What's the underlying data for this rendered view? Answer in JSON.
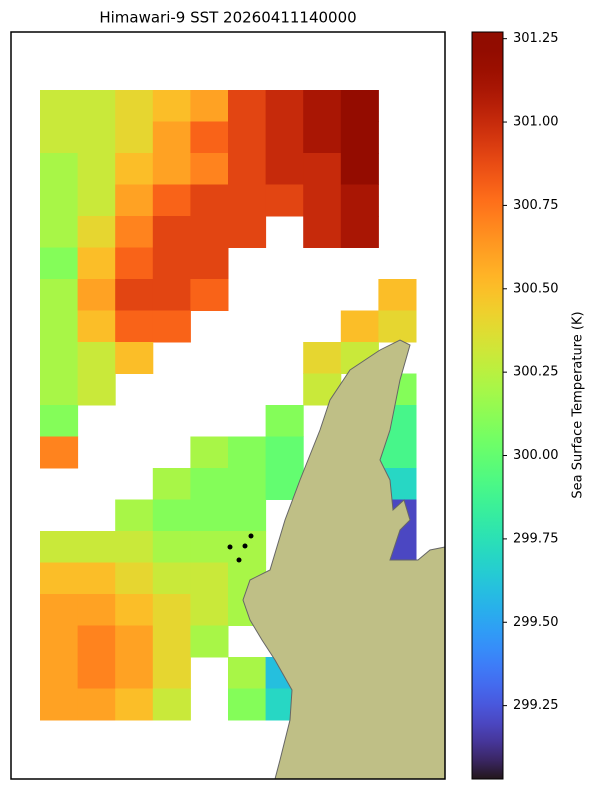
{
  "chart_data": {
    "type": "heatmap",
    "title": "Himawari-9 SST 20260411140000",
    "colorbar_label": "Sea Surface Temperature (K)",
    "colormap": "turbo",
    "vlim": [
      299.03,
      301.27
    ],
    "cticks": [
      299.25,
      {
        "value": 299.5,
        "label": "299.50"
      },
      299.75,
      {
        "value": 300,
        "label": "300.00"
      },
      300.25,
      {
        "value": 300.5,
        "label": "300.50"
      },
      300.75,
      {
        "value": 301,
        "label": "301.00"
      },
      301.25
    ],
    "values": [
      [
        300.3,
        300.3,
        300.4,
        300.5,
        300.6,
        300.9,
        301.0,
        301.1,
        301.2,
        null
      ],
      [
        300.3,
        300.3,
        300.4,
        300.6,
        300.8,
        300.9,
        301.0,
        301.1,
        301.2,
        null
      ],
      [
        300.2,
        300.3,
        300.5,
        300.6,
        300.7,
        300.9,
        301.0,
        301.0,
        301.2,
        null
      ],
      [
        300.2,
        300.3,
        300.6,
        300.8,
        300.9,
        300.9,
        300.9,
        301.0,
        301.1,
        null
      ],
      [
        300.2,
        300.4,
        300.7,
        300.9,
        300.9,
        300.9,
        null,
        301.0,
        301.1,
        null
      ],
      [
        300.1,
        300.5,
        300.8,
        300.9,
        300.9,
        null,
        null,
        null,
        null,
        null
      ],
      [
        300.2,
        300.6,
        300.9,
        300.9,
        300.8,
        null,
        null,
        null,
        null,
        300.5
      ],
      [
        300.2,
        300.5,
        300.8,
        300.8,
        null,
        null,
        null,
        null,
        300.5,
        300.4
      ],
      [
        300.2,
        300.3,
        300.5,
        null,
        null,
        null,
        null,
        300.4,
        300.3,
        null
      ],
      [
        300.2,
        300.3,
        null,
        null,
        null,
        null,
        null,
        300.3,
        null,
        300.1
      ],
      [
        300.1,
        null,
        null,
        null,
        null,
        null,
        300.1,
        null,
        null,
        299.9
      ],
      [
        300.7,
        null,
        null,
        null,
        300.2,
        300.1,
        300.0,
        null,
        null,
        299.9
      ],
      [
        null,
        null,
        null,
        300.2,
        300.1,
        300.1,
        300.0,
        null,
        null,
        299.7
      ],
      [
        null,
        null,
        300.2,
        300.1,
        300.1,
        300.1,
        null,
        null,
        null,
        299.2
      ],
      [
        300.3,
        300.3,
        300.3,
        300.2,
        300.2,
        300.2,
        null,
        null,
        null,
        299.2
      ],
      [
        300.5,
        300.5,
        300.4,
        300.3,
        300.3,
        300.2,
        null,
        null,
        null,
        null
      ],
      [
        300.6,
        300.6,
        300.5,
        300.4,
        300.3,
        300.2,
        null,
        null,
        null,
        null
      ],
      [
        300.6,
        300.7,
        300.6,
        300.4,
        300.2,
        null,
        null,
        null,
        null,
        null
      ],
      [
        300.6,
        300.7,
        300.6,
        300.4,
        null,
        300.2,
        299.6,
        null,
        null,
        null
      ],
      [
        300.6,
        300.6,
        300.5,
        300.3,
        null,
        300.1,
        299.7,
        null,
        null,
        null
      ]
    ]
  }
}
